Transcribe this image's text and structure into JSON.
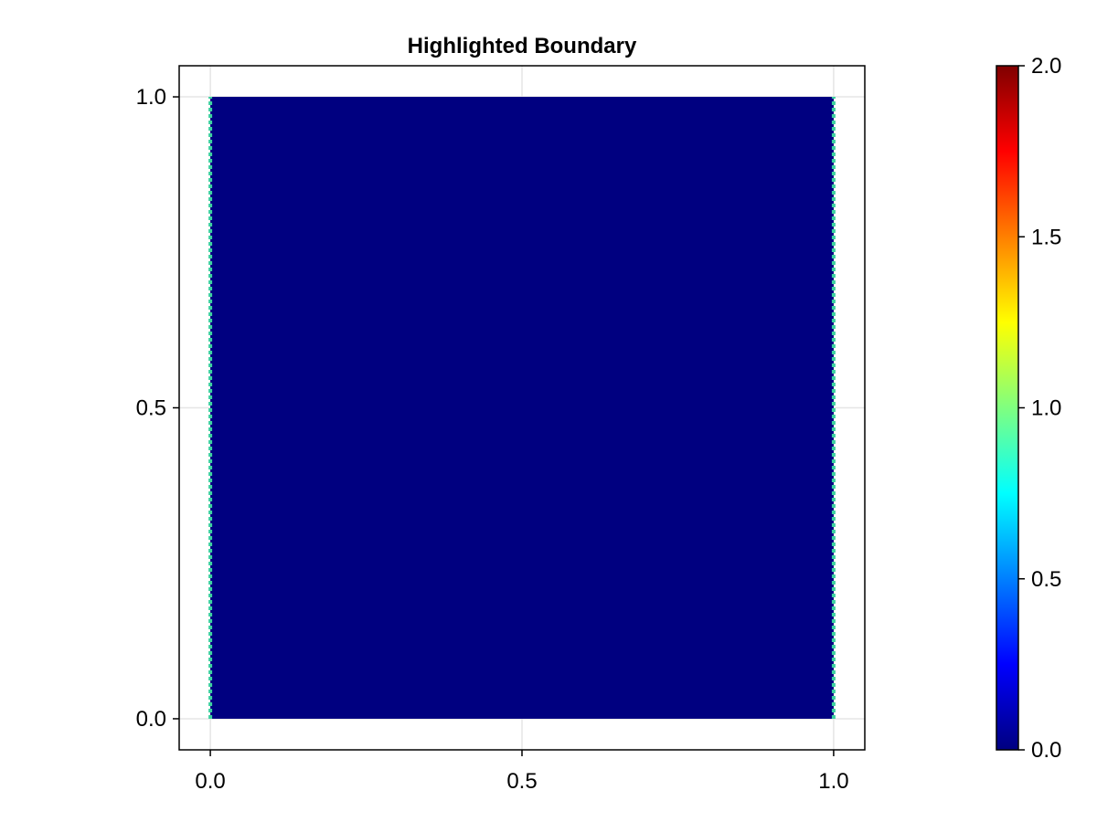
{
  "chart_data": [
    {
      "type": "heatmap",
      "title": "Highlighted Boundary",
      "xlabel": "",
      "ylabel": "",
      "xlim": [
        -0.05,
        1.05
      ],
      "ylim": [
        -0.05,
        1.05
      ],
      "xticks": [
        0.0,
        0.5,
        1.0
      ],
      "xtick_labels": [
        "0.0",
        "0.5",
        "1.0"
      ],
      "yticks": [
        0.0,
        0.5,
        1.0
      ],
      "ytick_labels": [
        "0.0",
        "0.5",
        "1.0"
      ],
      "grid": true,
      "interior": {
        "x": [
          0.0,
          1.0
        ],
        "y": [
          0.0,
          1.0
        ],
        "value": 0.0
      },
      "boundary": [
        {
          "edge": "left",
          "x": 0.0,
          "y": [
            0.0,
            1.0
          ],
          "value": 1.0
        },
        {
          "edge": "right",
          "x": 1.0,
          "y": [
            0.0,
            1.0
          ],
          "value": 1.0
        }
      ],
      "colormap": "jet"
    },
    {
      "type": "colorbar",
      "colormap": "jet",
      "range": [
        0.0,
        2.0
      ],
      "ticks": [
        0.0,
        0.5,
        1.0,
        1.5,
        2.0
      ],
      "tick_labels": [
        "0.0",
        "0.5",
        "1.0",
        "1.5",
        "2.0"
      ]
    }
  ],
  "colors": {
    "interior": "#000080",
    "boundary": "#3dd1a0",
    "grid": "#e5e5e5",
    "axis": "#000000"
  }
}
